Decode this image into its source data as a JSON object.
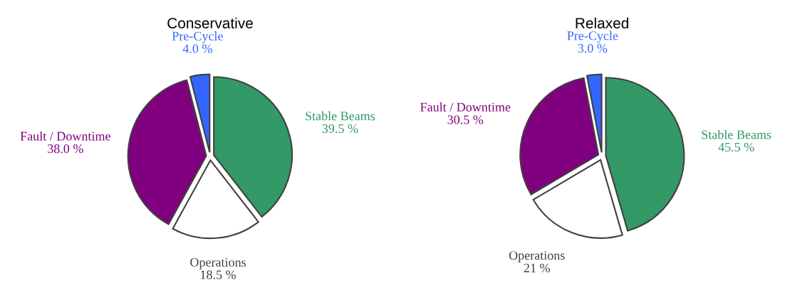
{
  "chart_data": [
    {
      "type": "pie",
      "title": "Conservative",
      "categories": [
        "Stable Beams",
        "Operations",
        "Fault / Downtime",
        "Pre-Cycle"
      ],
      "values": [
        39.5,
        18.5,
        38.0,
        4.0
      ],
      "value_labels": [
        "39.5 %",
        "18.5 %",
        "38.0 %",
        "4.0 %"
      ],
      "colors": [
        "#339966",
        "#ffffff",
        "#800080",
        "#3366ff"
      ]
    },
    {
      "type": "pie",
      "title": "Relaxed",
      "categories": [
        "Stable Beams",
        "Operations",
        "Fault / Downtime",
        "Pre-Cycle"
      ],
      "values": [
        45.5,
        21,
        30.5,
        3.0
      ],
      "value_labels": [
        "45.5 %",
        "21 %",
        "30.5 %",
        "3.0 %"
      ],
      "colors": [
        "#339966",
        "#ffffff",
        "#800080",
        "#3366ff"
      ]
    }
  ]
}
